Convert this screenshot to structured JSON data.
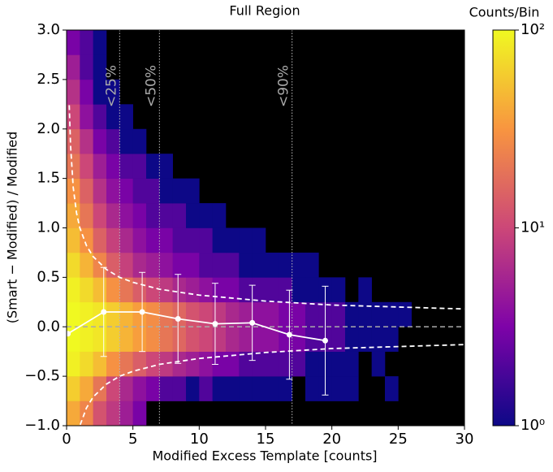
{
  "chart_data": {
    "type": "hist2d",
    "title": "Full Region",
    "xlabel": "Modified Excess Template [counts]",
    "ylabel": "(Smart − Modified) / Modified",
    "xlim": [
      0,
      30
    ],
    "xticks": [
      0,
      5,
      10,
      15,
      20,
      25,
      30
    ],
    "ylim": [
      -1,
      3
    ],
    "yticks": [
      {
        "value": -1,
        "label": "−1.0"
      },
      {
        "value": -0.5,
        "label": "−0.5"
      },
      {
        "value": 0,
        "label": "0.0"
      },
      0.5,
      {
        "value": 1,
        "label": "1.0"
      },
      1.5,
      {
        "value": 2,
        "label": "2.0"
      },
      2.5,
      {
        "value": 3,
        "label": "3.0"
      }
    ],
    "colorbar": {
      "label": "Counts/Bin",
      "scale": "log",
      "lim": [
        1,
        100
      ],
      "ticks": [
        {
          "value": 1,
          "label": "10⁰"
        },
        {
          "value": 10,
          "label": "10¹"
        },
        {
          "value": 100,
          "label": "10²"
        }
      ]
    },
    "heatmap": {
      "xbins": [
        0,
        1,
        2,
        3,
        4,
        5,
        6,
        7,
        8,
        9,
        10,
        11,
        12,
        13,
        14,
        15,
        16,
        17,
        18,
        19,
        20,
        21,
        22,
        23,
        24,
        25,
        26,
        27,
        28
      ],
      "ybins": [
        -1,
        -0.75,
        -0.5,
        -0.25,
        0,
        0.25,
        0.5,
        0.75,
        1,
        1.25,
        1.5,
        1.75,
        2,
        2.25,
        2.5,
        2.75,
        3
      ],
      "counts": [
        [
          40,
          25,
          12,
          8,
          5,
          3,
          null,
          null,
          null,
          null,
          null,
          null,
          null,
          null,
          null,
          null,
          null,
          null,
          null,
          null,
          null,
          null,
          null,
          null,
          null,
          null,
          null,
          null
        ],
        [
          60,
          40,
          20,
          10,
          6,
          4,
          3,
          2,
          2,
          1,
          2,
          1,
          1,
          1,
          1,
          1,
          1,
          null,
          1,
          1,
          1,
          1,
          null,
          null,
          1,
          null,
          null,
          null
        ],
        [
          90,
          70,
          50,
          30,
          20,
          14,
          10,
          8,
          6,
          5,
          4,
          3,
          3,
          2,
          2,
          2,
          2,
          2,
          1,
          1,
          1,
          1,
          null,
          1,
          null,
          null,
          null,
          null
        ],
        [
          100,
          90,
          80,
          60,
          45,
          35,
          28,
          20,
          16,
          12,
          10,
          8,
          6,
          5,
          4,
          4,
          3,
          3,
          2,
          2,
          2,
          1,
          1,
          1,
          1,
          null,
          null,
          null
        ],
        [
          100,
          90,
          80,
          60,
          45,
          35,
          28,
          20,
          16,
          12,
          10,
          8,
          6,
          5,
          4,
          4,
          3,
          3,
          2,
          2,
          2,
          1,
          1,
          1,
          1,
          1,
          null,
          null
        ],
        [
          90,
          70,
          50,
          30,
          20,
          14,
          10,
          8,
          6,
          5,
          4,
          3,
          3,
          2,
          2,
          2,
          2,
          1,
          1,
          1,
          1,
          null,
          1,
          null,
          null,
          null,
          null,
          null
        ],
        [
          70,
          45,
          25,
          14,
          9,
          6,
          5,
          4,
          3,
          3,
          2,
          2,
          2,
          1,
          1,
          1,
          1,
          1,
          1,
          null,
          null,
          null,
          null,
          null,
          null,
          null,
          null,
          null
        ],
        [
          50,
          30,
          15,
          9,
          6,
          4,
          3,
          3,
          2,
          2,
          2,
          1,
          1,
          1,
          1,
          null,
          null,
          null,
          null,
          null,
          null,
          null,
          null,
          null,
          null,
          null,
          null,
          null
        ],
        [
          40,
          20,
          10,
          6,
          4,
          3,
          2,
          2,
          2,
          1,
          1,
          1,
          null,
          null,
          null,
          null,
          null,
          null,
          null,
          null,
          null,
          null,
          null,
          null,
          null,
          null,
          null,
          null
        ],
        [
          30,
          15,
          7,
          4,
          3,
          2,
          2,
          1,
          1,
          1,
          null,
          null,
          null,
          null,
          null,
          null,
          null,
          null,
          null,
          null,
          null,
          null,
          null,
          null,
          null,
          null,
          null,
          null
        ],
        [
          20,
          10,
          5,
          3,
          2,
          2,
          1,
          1,
          null,
          null,
          null,
          null,
          null,
          null,
          null,
          null,
          null,
          null,
          null,
          null,
          null,
          null,
          null,
          null,
          null,
          null,
          null,
          null
        ],
        [
          15,
          7,
          3,
          2,
          1,
          1,
          null,
          null,
          null,
          null,
          null,
          null,
          null,
          null,
          null,
          null,
          null,
          null,
          null,
          null,
          null,
          null,
          null,
          null,
          null,
          null,
          null,
          null
        ],
        [
          10,
          4,
          2,
          1,
          1,
          null,
          null,
          null,
          null,
          null,
          null,
          null,
          null,
          null,
          null,
          null,
          null,
          null,
          null,
          null,
          null,
          null,
          null,
          null,
          null,
          null,
          null,
          null
        ],
        [
          7,
          3,
          1,
          1,
          null,
          null,
          null,
          null,
          null,
          null,
          null,
          null,
          null,
          null,
          null,
          null,
          null,
          null,
          null,
          null,
          null,
          null,
          null,
          null,
          null,
          null,
          null,
          null
        ],
        [
          5,
          2,
          1,
          null,
          null,
          null,
          null,
          null,
          null,
          null,
          null,
          null,
          null,
          null,
          null,
          null,
          null,
          null,
          null,
          null,
          null,
          null,
          null,
          null,
          null,
          null,
          null,
          null
        ],
        [
          3,
          2,
          1,
          null,
          null,
          null,
          null,
          null,
          null,
          null,
          null,
          null,
          null,
          null,
          null,
          null,
          null,
          null,
          null,
          null,
          null,
          null,
          null,
          null,
          null,
          null,
          null,
          null
        ]
      ]
    },
    "vlines": [
      {
        "x": 4,
        "label": "<25%"
      },
      {
        "x": 7,
        "label": "<50%"
      },
      {
        "x": 17,
        "label": "<90%"
      }
    ],
    "hline": 0,
    "curves": [
      {
        "x": [
          0.2,
          0.3,
          0.5,
          0.75,
          1,
          1.5,
          2,
          3,
          4,
          5,
          7,
          10,
          15,
          20,
          25,
          30
        ],
        "y": [
          2.24,
          1.83,
          1.41,
          1.15,
          1,
          0.82,
          0.71,
          0.58,
          0.5,
          0.45,
          0.38,
          0.32,
          0.26,
          0.22,
          0.2,
          0.18
        ]
      },
      {
        "x": [
          0.75,
          1,
          1.5,
          2,
          3,
          4,
          5,
          7,
          10,
          15,
          20,
          25,
          30
        ],
        "y": [
          -1.15,
          -1,
          -0.82,
          -0.71,
          -0.58,
          -0.5,
          -0.45,
          -0.38,
          -0.32,
          -0.26,
          -0.22,
          -0.2,
          -0.18
        ]
      }
    ],
    "binned": {
      "x": [
        0.1,
        2.8,
        5.7,
        8.4,
        11.2,
        14,
        16.8,
        19.5
      ],
      "y": [
        -0.07,
        0.15,
        0.15,
        0.08,
        0.03,
        0.04,
        -0.08,
        -0.14
      ],
      "err": [
        null,
        0.45,
        0.4,
        0.45,
        0.41,
        0.38,
        0.45,
        0.55
      ]
    }
  }
}
